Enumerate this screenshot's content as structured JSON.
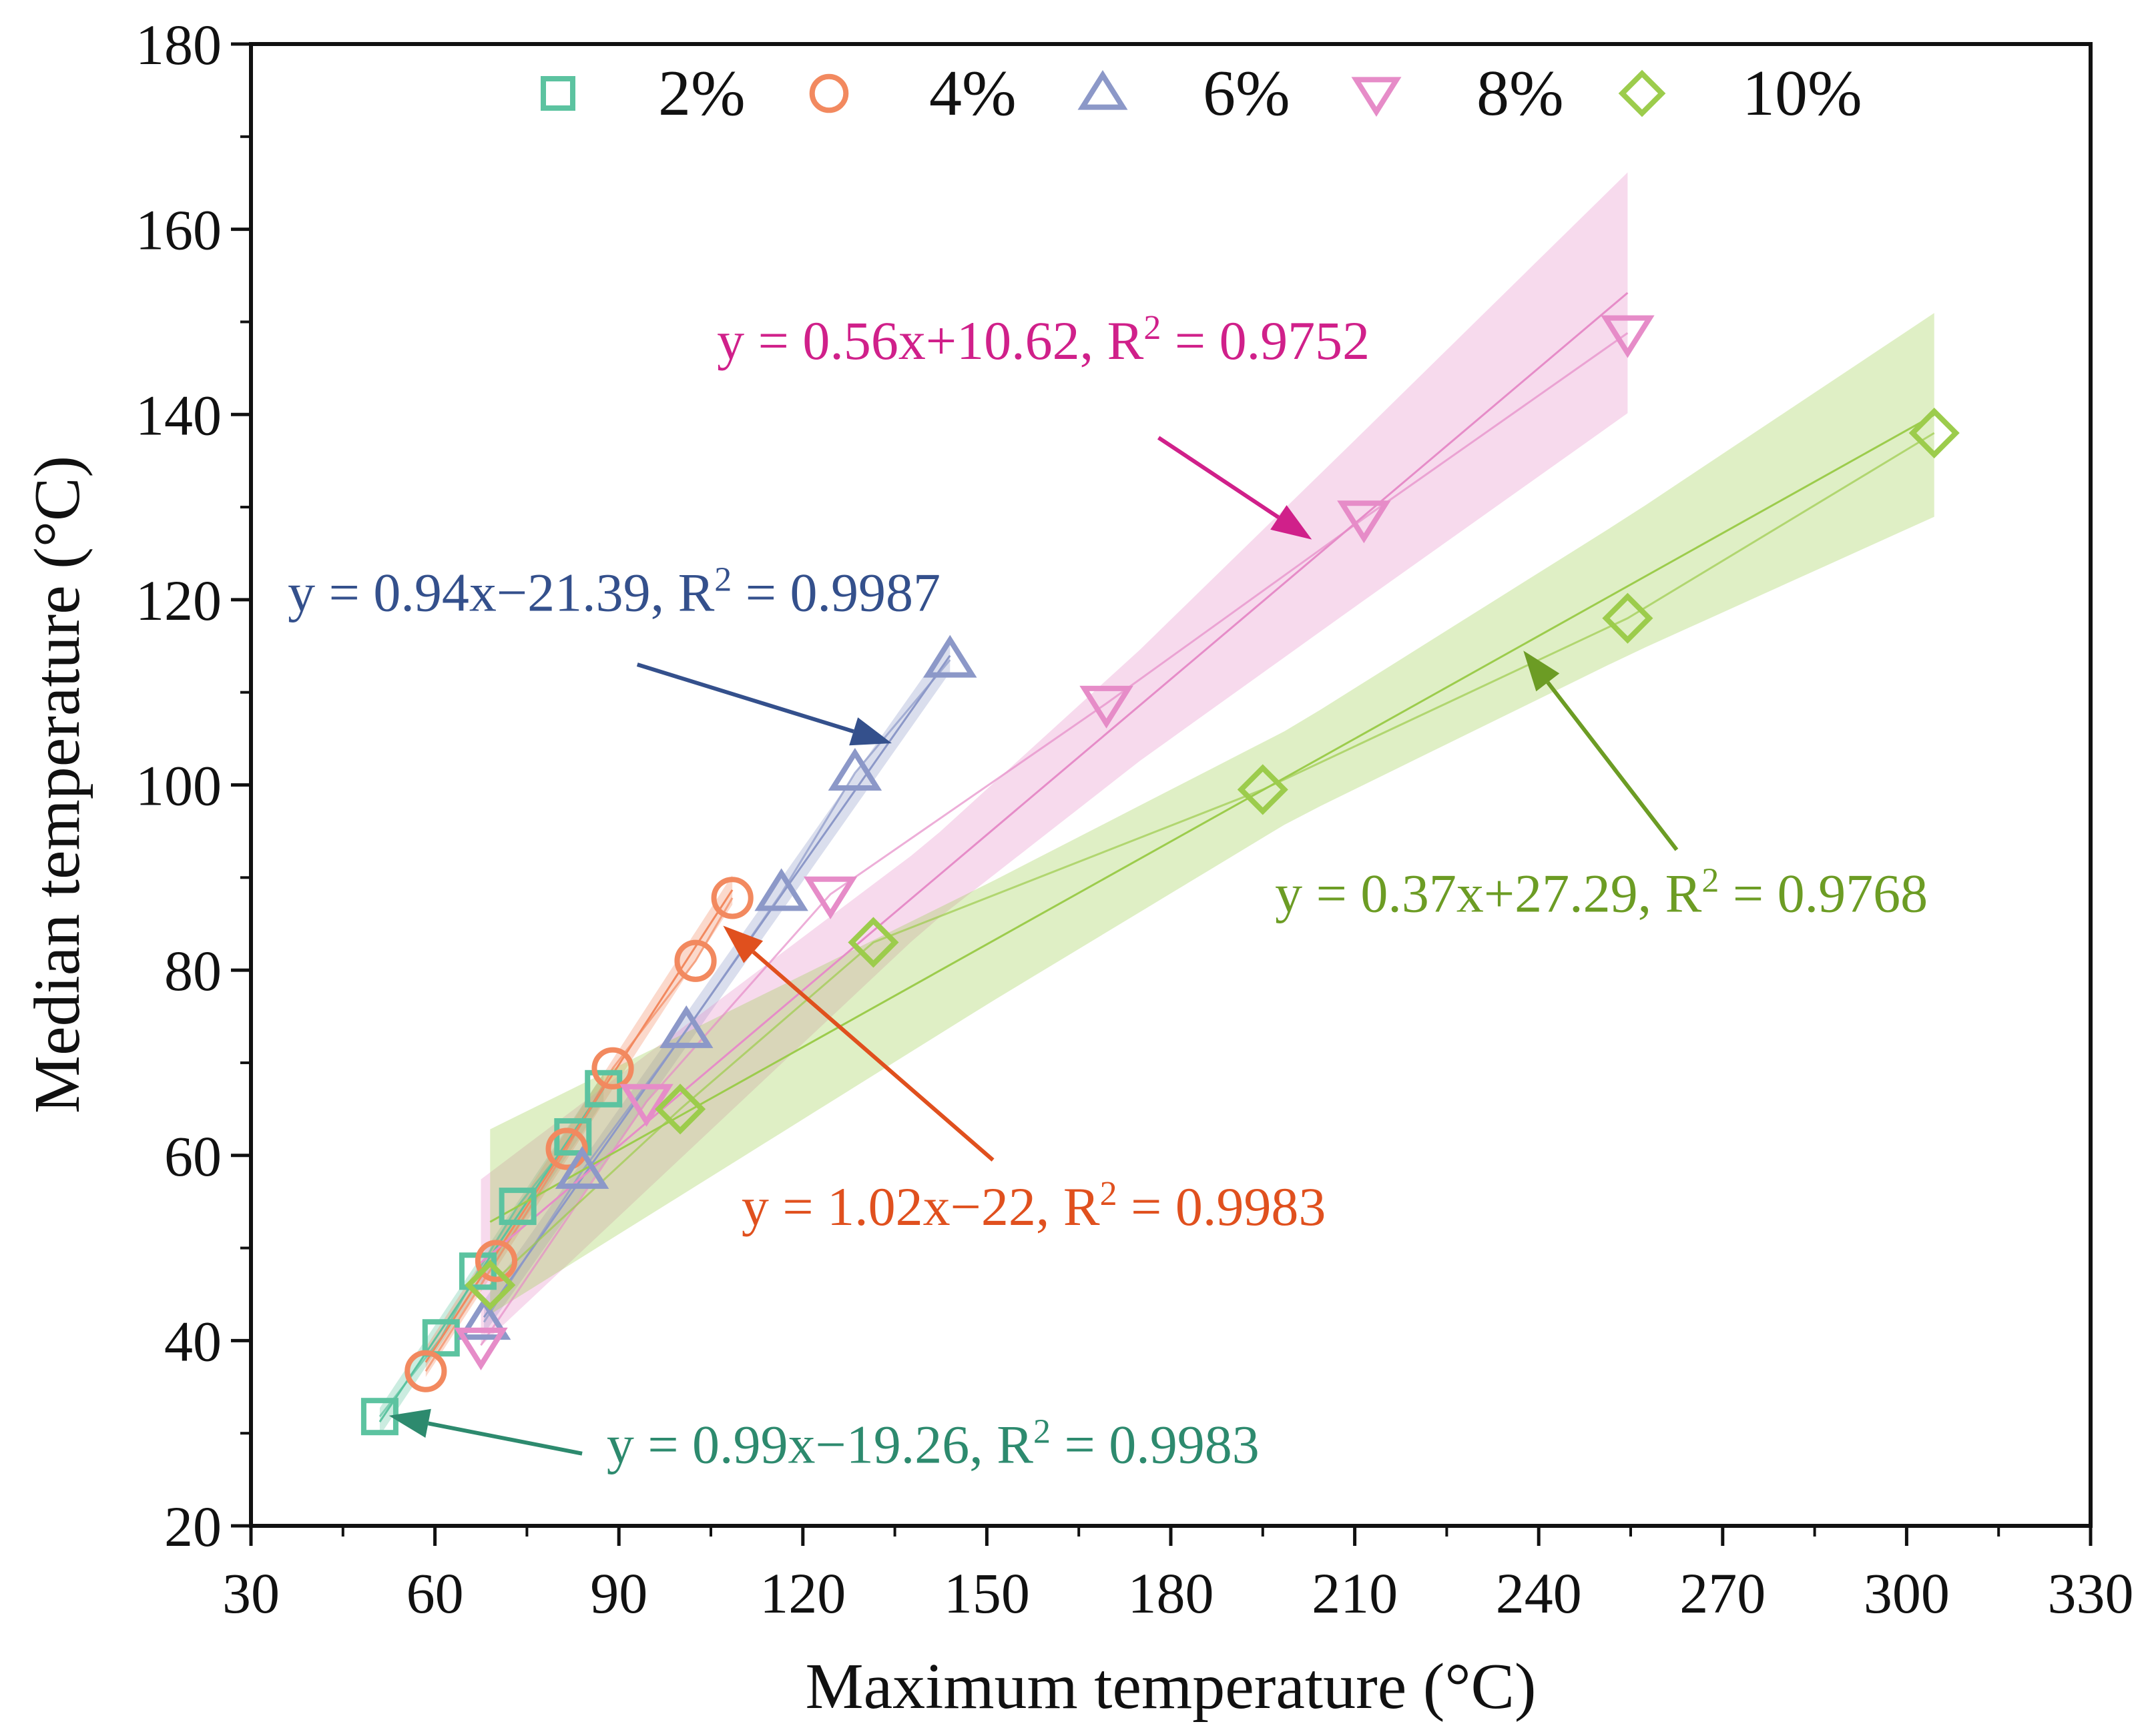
{
  "chart_data": {
    "type": "scatter",
    "xlabel": "Maximum temperature (°C)",
    "ylabel": "Median temperature (°C)",
    "xlim": [
      30,
      330
    ],
    "ylim": [
      20,
      180
    ],
    "xticks": [
      30,
      60,
      90,
      120,
      150,
      180,
      210,
      240,
      270,
      300,
      330
    ],
    "yticks": [
      20,
      40,
      60,
      80,
      100,
      120,
      140,
      160,
      180
    ],
    "x_minor_step": 15,
    "y_minor_step": 10,
    "legend_position": "top",
    "series": [
      {
        "name": "2%",
        "marker": "square",
        "color": "#5cc3a0",
        "points": [
          [
            51,
            31.8
          ],
          [
            61,
            40.3
          ],
          [
            67,
            47.5
          ],
          [
            73.5,
            54.5
          ],
          [
            82.5,
            62
          ],
          [
            87.5,
            67.2
          ]
        ],
        "fit": {
          "slope": 0.99,
          "intercept": -19.26,
          "x_range": [
            51,
            87.5
          ],
          "band": 1.5
        },
        "equation": {
          "prefix": "y = 0.99x−19.26, R",
          "sup": "2",
          "suffix": " = 0.9983",
          "color": "#2d8a6e",
          "anchor": [
            88,
            26.8
          ],
          "arrow_from": [
            84,
            27.8
          ],
          "arrow_to": [
            52.5,
            31.9
          ]
        }
      },
      {
        "name": "4%",
        "marker": "circle",
        "color": "#f2895f",
        "points": [
          [
            58.5,
            36.7
          ],
          [
            70,
            48.6
          ],
          [
            81.5,
            60.7
          ],
          [
            89,
            69.4
          ],
          [
            102.5,
            81
          ],
          [
            108.5,
            87.8
          ]
        ],
        "fit": {
          "slope": 1.02,
          "intercept": -22,
          "x_range": [
            58.5,
            108.5
          ],
          "band": 1.6
        },
        "equation": {
          "prefix": "y = 1.02x−22, R",
          "sup": "2",
          "suffix": " = 0.9983",
          "color": "#e0501e",
          "anchor": [
            110,
            52.5
          ],
          "arrow_from": [
            151,
            59.5
          ],
          "arrow_to": [
            107,
            84.8
          ]
        }
      },
      {
        "name": "6%",
        "marker": "triangle-up",
        "color": "#8c98c8",
        "points": [
          [
            68,
            42
          ],
          [
            84,
            58.3
          ],
          [
            101,
            73.5
          ],
          [
            116.5,
            88.3
          ],
          [
            128.5,
            101.3
          ],
          [
            144,
            113.5
          ]
        ],
        "fit": {
          "slope": 0.94,
          "intercept": -21.39,
          "x_range": [
            68,
            144
          ],
          "band": 1.8
        },
        "equation": {
          "prefix": "y = 0.94x−21.39, R",
          "sup": "2",
          "suffix": " = 0.9987",
          "color": "#34508c",
          "anchor": [
            36,
            118.8
          ],
          "arrow_from": [
            93,
            113
          ],
          "arrow_to": [
            134.5,
            104.5
          ]
        }
      },
      {
        "name": "8%",
        "marker": "triangle-down",
        "color": "#e68cc8",
        "points": [
          [
            67.5,
            39.5
          ],
          [
            94.5,
            65.8
          ],
          [
            124.5,
            88.2
          ],
          [
            169.5,
            108.8
          ],
          [
            211.5,
            128.8
          ],
          [
            254.5,
            148.8
          ]
        ],
        "fit": {
          "slope": 0.56,
          "intercept": 10.62,
          "x_range": [
            67.5,
            254.5
          ],
          "band_x": [
            67.5,
            140,
            175,
            210,
            254.5
          ],
          "band_w": [
            9,
            4.5,
            6,
            9,
            13
          ]
        },
        "equation": {
          "prefix": "y = 0.56x+10.62, R",
          "sup": "2",
          "suffix": " = 0.9752",
          "color": "#d0208a",
          "anchor": [
            106,
            146
          ],
          "arrow_from": [
            178,
            137.5
          ],
          "arrow_to": [
            203,
            126.5
          ]
        }
      },
      {
        "name": "10%",
        "marker": "diamond",
        "color": "#9ccc4c",
        "points": [
          [
            69,
            46
          ],
          [
            100,
            65
          ],
          [
            131.5,
            83
          ],
          [
            195,
            99.5
          ],
          [
            254.5,
            118
          ],
          [
            304.5,
            138
          ]
        ],
        "fit": {
          "slope": 0.37,
          "intercept": 27.29,
          "x_range": [
            69,
            304.5
          ],
          "band_x": [
            69,
            150,
            200,
            255,
            304.5
          ],
          "band_w": [
            10,
            6.5,
            5,
            7.5,
            11
          ]
        },
        "equation": {
          "prefix": "y = 0.37x+27.29, R",
          "sup": "2",
          "suffix": " = 0.9768",
          "color": "#6c9c24",
          "anchor": [
            197,
            86.3
          ],
          "arrow_from": [
            262.5,
            93
          ],
          "arrow_to": [
            237.5,
            114.5
          ]
        }
      }
    ]
  }
}
